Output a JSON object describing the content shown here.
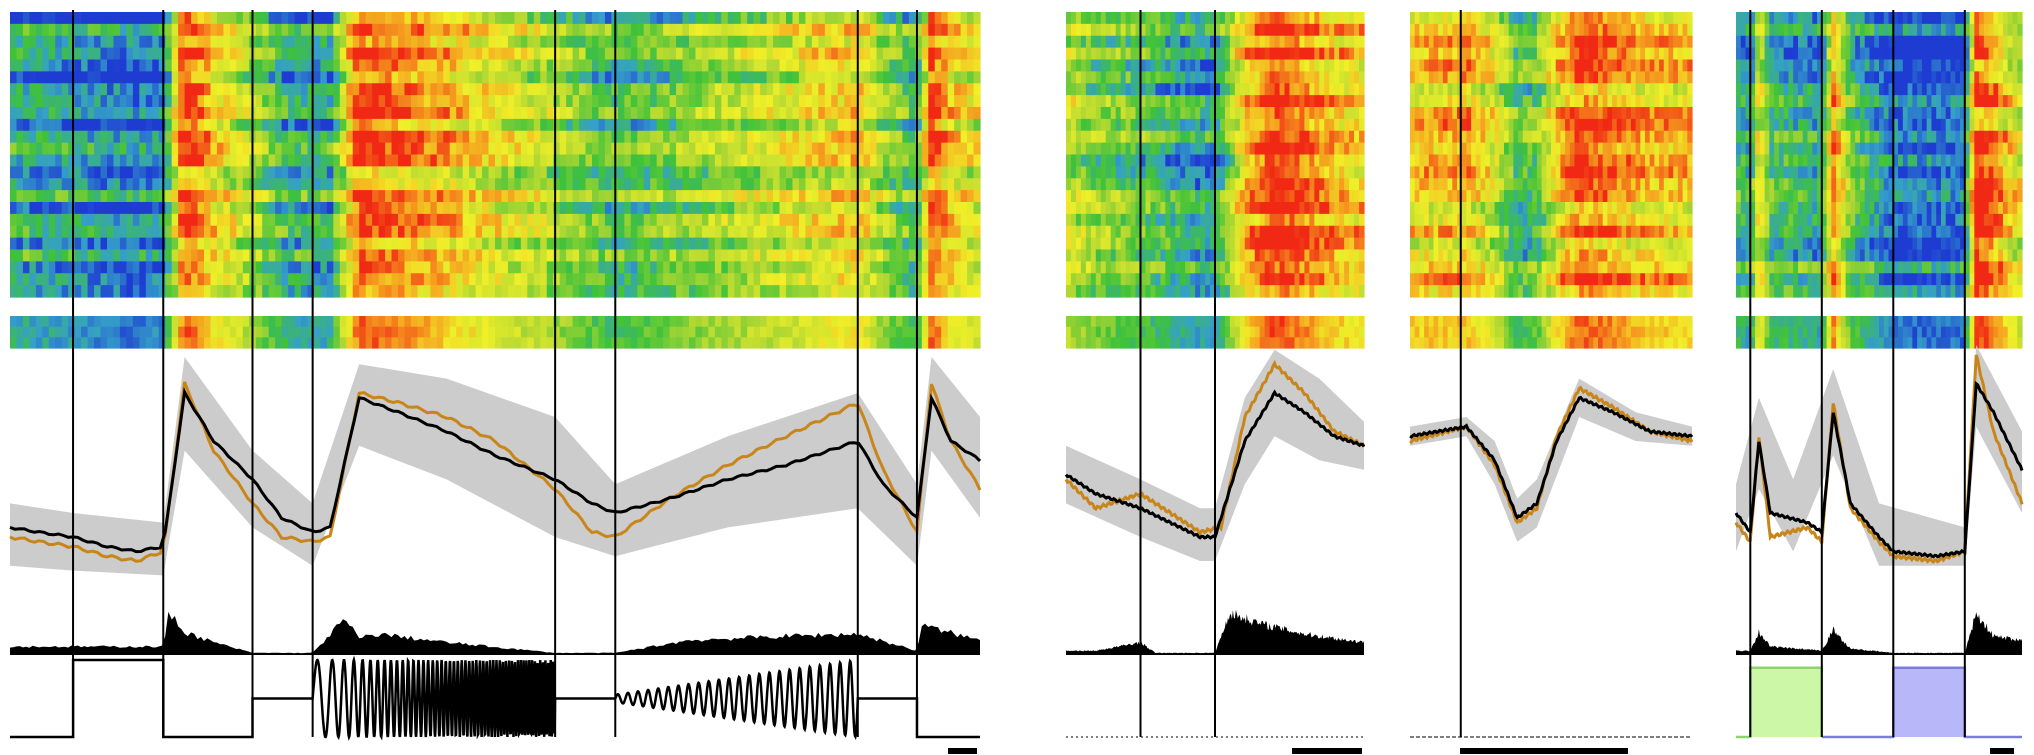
{
  "chart_data": {
    "type": "heatmap",
    "colormap": [
      "#1e3cd2",
      "#35a0c8",
      "#3fc23a",
      "#b4d832",
      "#f0f028",
      "#f59a1e",
      "#f02814"
    ],
    "colors": {
      "mean_trace": "#000000",
      "example_trace": "#c8861a",
      "sd_band": "#cccccc",
      "green_stim_fill": "#ccf7a6",
      "green_stim_line": "#8ed468",
      "blue_stim_fill": "#b7b7fa",
      "blue_stim_line": "#7c7ce0",
      "stim_trace": "#000000"
    },
    "panels": [
      {
        "name": "chirp",
        "event_markers_fraction": [
          0.065,
          0.158,
          0.25,
          0.312,
          0.562,
          0.624,
          0.874,
          0.935
        ],
        "scale_bar": true,
        "mean_response": [
          [
            0.0,
            0.24
          ],
          [
            0.03,
            0.22
          ],
          [
            0.065,
            0.2
          ],
          [
            0.1,
            0.16
          ],
          [
            0.13,
            0.14
          ],
          [
            0.158,
            0.16
          ],
          [
            0.18,
            0.8
          ],
          [
            0.21,
            0.6
          ],
          [
            0.25,
            0.44
          ],
          [
            0.28,
            0.28
          ],
          [
            0.312,
            0.22
          ],
          [
            0.33,
            0.24
          ],
          [
            0.36,
            0.78
          ],
          [
            0.4,
            0.72
          ],
          [
            0.45,
            0.64
          ],
          [
            0.5,
            0.54
          ],
          [
            0.562,
            0.44
          ],
          [
            0.6,
            0.34
          ],
          [
            0.624,
            0.3
          ],
          [
            0.68,
            0.36
          ],
          [
            0.74,
            0.44
          ],
          [
            0.8,
            0.5
          ],
          [
            0.874,
            0.6
          ],
          [
            0.9,
            0.42
          ],
          [
            0.935,
            0.28
          ],
          [
            0.95,
            0.78
          ],
          [
            0.97,
            0.6
          ],
          [
            1.0,
            0.52
          ]
        ],
        "example_response": [
          [
            0.0,
            0.2
          ],
          [
            0.03,
            0.18
          ],
          [
            0.065,
            0.16
          ],
          [
            0.1,
            0.12
          ],
          [
            0.13,
            0.1
          ],
          [
            0.158,
            0.14
          ],
          [
            0.18,
            0.84
          ],
          [
            0.21,
            0.56
          ],
          [
            0.25,
            0.34
          ],
          [
            0.28,
            0.2
          ],
          [
            0.312,
            0.18
          ],
          [
            0.33,
            0.2
          ],
          [
            0.36,
            0.8
          ],
          [
            0.4,
            0.76
          ],
          [
            0.45,
            0.7
          ],
          [
            0.5,
            0.6
          ],
          [
            0.562,
            0.4
          ],
          [
            0.6,
            0.22
          ],
          [
            0.624,
            0.2
          ],
          [
            0.68,
            0.36
          ],
          [
            0.74,
            0.5
          ],
          [
            0.8,
            0.62
          ],
          [
            0.874,
            0.76
          ],
          [
            0.9,
            0.48
          ],
          [
            0.935,
            0.22
          ],
          [
            0.95,
            0.84
          ],
          [
            0.97,
            0.6
          ],
          [
            1.0,
            0.4
          ]
        ],
        "sd_upper": [
          [
            0.0,
            0.34
          ],
          [
            0.065,
            0.3
          ],
          [
            0.158,
            0.26
          ],
          [
            0.18,
            0.95
          ],
          [
            0.25,
            0.56
          ],
          [
            0.312,
            0.34
          ],
          [
            0.36,
            0.92
          ],
          [
            0.45,
            0.86
          ],
          [
            0.562,
            0.7
          ],
          [
            0.624,
            0.42
          ],
          [
            0.74,
            0.62
          ],
          [
            0.874,
            0.8
          ],
          [
            0.935,
            0.42
          ],
          [
            0.95,
            0.95
          ],
          [
            1.0,
            0.7
          ]
        ],
        "sd_lower": [
          [
            0.0,
            0.08
          ],
          [
            0.065,
            0.06
          ],
          [
            0.158,
            0.04
          ],
          [
            0.18,
            0.56
          ],
          [
            0.25,
            0.24
          ],
          [
            0.312,
            0.08
          ],
          [
            0.36,
            0.58
          ],
          [
            0.45,
            0.44
          ],
          [
            0.562,
            0.2
          ],
          [
            0.624,
            0.12
          ],
          [
            0.74,
            0.24
          ],
          [
            0.874,
            0.32
          ],
          [
            0.935,
            0.08
          ],
          [
            0.95,
            0.56
          ],
          [
            1.0,
            0.28
          ]
        ],
        "firing_rate_peaks": [
          [
            0.158,
            0.2
          ],
          [
            0.164,
            1.0
          ],
          [
            0.18,
            0.55
          ],
          [
            0.21,
            0.3
          ],
          [
            0.25,
            0.05
          ],
          [
            0.312,
            0.05
          ],
          [
            0.345,
            0.85
          ],
          [
            0.36,
            0.4
          ],
          [
            0.38,
            0.5
          ],
          [
            0.45,
            0.3
          ],
          [
            0.562,
            0.05
          ],
          [
            0.624,
            0.05
          ],
          [
            0.7,
            0.35
          ],
          [
            0.8,
            0.45
          ],
          [
            0.874,
            0.5
          ],
          [
            0.935,
            0.1
          ],
          [
            0.94,
            0.7
          ],
          [
            1.0,
            0.35
          ]
        ],
        "stimulus": {
          "kind": "chirp",
          "segments": [
            {
              "from": 0.0,
              "to": 0.065,
              "level": 0.0
            },
            {
              "from": 0.065,
              "to": 0.158,
              "level": 1.0
            },
            {
              "from": 0.158,
              "to": 0.25,
              "level": 0.0
            },
            {
              "from": 0.25,
              "to": 0.312,
              "level": 0.5
            },
            {
              "from": 0.312,
              "to": 0.562,
              "level": 0.5,
              "modulation": "frequency",
              "f_start": 1,
              "f_end": 8,
              "amplitude": 0.5
            },
            {
              "from": 0.562,
              "to": 0.624,
              "level": 0.5
            },
            {
              "from": 0.624,
              "to": 0.874,
              "level": 0.5,
              "modulation": "amplitude",
              "frequency": 2,
              "a_start": 0.05,
              "a_end": 0.5
            },
            {
              "from": 0.874,
              "to": 0.935,
              "level": 0.5
            },
            {
              "from": 0.935,
              "to": 1.0,
              "level": 0.0
            }
          ]
        }
      },
      {
        "name": "moving-bar",
        "event_markers_fraction": [
          0.25,
          0.5
        ],
        "scale_bar": true,
        "mean_response": [
          [
            0.0,
            0.46
          ],
          [
            0.1,
            0.38
          ],
          [
            0.25,
            0.32
          ],
          [
            0.35,
            0.26
          ],
          [
            0.45,
            0.2
          ],
          [
            0.5,
            0.2
          ],
          [
            0.6,
            0.6
          ],
          [
            0.7,
            0.8
          ],
          [
            0.8,
            0.72
          ],
          [
            0.9,
            0.62
          ],
          [
            1.0,
            0.58
          ]
        ],
        "example_response": [
          [
            0.0,
            0.44
          ],
          [
            0.1,
            0.32
          ],
          [
            0.25,
            0.38
          ],
          [
            0.35,
            0.3
          ],
          [
            0.45,
            0.22
          ],
          [
            0.52,
            0.24
          ],
          [
            0.6,
            0.7
          ],
          [
            0.7,
            0.92
          ],
          [
            0.8,
            0.8
          ],
          [
            0.9,
            0.64
          ],
          [
            1.0,
            0.58
          ]
        ],
        "sd_upper": [
          [
            0.0,
            0.58
          ],
          [
            0.25,
            0.44
          ],
          [
            0.45,
            0.32
          ],
          [
            0.5,
            0.32
          ],
          [
            0.6,
            0.78
          ],
          [
            0.7,
            0.98
          ],
          [
            0.85,
            0.86
          ],
          [
            1.0,
            0.68
          ]
        ],
        "sd_lower": [
          [
            0.0,
            0.34
          ],
          [
            0.25,
            0.2
          ],
          [
            0.45,
            0.1
          ],
          [
            0.5,
            0.1
          ],
          [
            0.6,
            0.42
          ],
          [
            0.7,
            0.62
          ],
          [
            0.85,
            0.52
          ],
          [
            1.0,
            0.48
          ]
        ],
        "firing_rate_peaks": [
          [
            0.1,
            0.1
          ],
          [
            0.25,
            0.3
          ],
          [
            0.3,
            0.05
          ],
          [
            0.5,
            0.05
          ],
          [
            0.55,
            1.0
          ],
          [
            0.65,
            0.75
          ],
          [
            0.8,
            0.5
          ],
          [
            1.0,
            0.3
          ]
        ],
        "stimulus": {
          "kind": "dotted-baseline"
        }
      },
      {
        "name": "noise-kernel",
        "event_markers_fraction": [
          0.18
        ],
        "scale_bar": true,
        "mean_response": [
          [
            0.0,
            0.62
          ],
          [
            0.1,
            0.64
          ],
          [
            0.2,
            0.66
          ],
          [
            0.3,
            0.52
          ],
          [
            0.38,
            0.28
          ],
          [
            0.45,
            0.34
          ],
          [
            0.52,
            0.6
          ],
          [
            0.6,
            0.78
          ],
          [
            0.72,
            0.72
          ],
          [
            0.85,
            0.64
          ],
          [
            1.0,
            0.62
          ]
        ],
        "example_response": [
          [
            0.0,
            0.6
          ],
          [
            0.1,
            0.63
          ],
          [
            0.2,
            0.66
          ],
          [
            0.3,
            0.5
          ],
          [
            0.38,
            0.26
          ],
          [
            0.45,
            0.32
          ],
          [
            0.52,
            0.62
          ],
          [
            0.6,
            0.82
          ],
          [
            0.72,
            0.74
          ],
          [
            0.85,
            0.64
          ],
          [
            1.0,
            0.6
          ]
        ],
        "sd_upper": [
          [
            0.0,
            0.66
          ],
          [
            0.2,
            0.7
          ],
          [
            0.3,
            0.6
          ],
          [
            0.38,
            0.36
          ],
          [
            0.45,
            0.44
          ],
          [
            0.6,
            0.86
          ],
          [
            0.8,
            0.72
          ],
          [
            1.0,
            0.66
          ]
        ],
        "sd_lower": [
          [
            0.0,
            0.58
          ],
          [
            0.2,
            0.62
          ],
          [
            0.3,
            0.42
          ],
          [
            0.38,
            0.18
          ],
          [
            0.45,
            0.24
          ],
          [
            0.6,
            0.7
          ],
          [
            0.8,
            0.6
          ],
          [
            1.0,
            0.58
          ]
        ],
        "firing_rate_peaks": [],
        "stimulus": {
          "kind": "dashed-baseline"
        }
      },
      {
        "name": "color-flashes",
        "event_markers_fraction": [
          0.05,
          0.3,
          0.55,
          0.8
        ],
        "scale_bar": true,
        "mean_response": [
          [
            0.0,
            0.3
          ],
          [
            0.05,
            0.22
          ],
          [
            0.08,
            0.6
          ],
          [
            0.12,
            0.3
          ],
          [
            0.25,
            0.26
          ],
          [
            0.3,
            0.22
          ],
          [
            0.34,
            0.72
          ],
          [
            0.4,
            0.34
          ],
          [
            0.5,
            0.2
          ],
          [
            0.55,
            0.14
          ],
          [
            0.7,
            0.12
          ],
          [
            0.8,
            0.14
          ],
          [
            0.84,
            0.84
          ],
          [
            0.9,
            0.72
          ],
          [
            1.0,
            0.48
          ]
        ],
        "example_response": [
          [
            0.0,
            0.26
          ],
          [
            0.05,
            0.18
          ],
          [
            0.08,
            0.62
          ],
          [
            0.12,
            0.2
          ],
          [
            0.25,
            0.24
          ],
          [
            0.3,
            0.18
          ],
          [
            0.34,
            0.76
          ],
          [
            0.4,
            0.32
          ],
          [
            0.5,
            0.18
          ],
          [
            0.55,
            0.12
          ],
          [
            0.7,
            0.1
          ],
          [
            0.8,
            0.14
          ],
          [
            0.84,
            0.96
          ],
          [
            0.9,
            0.64
          ],
          [
            1.0,
            0.34
          ]
        ],
        "sd_upper": [
          [
            0.0,
            0.42
          ],
          [
            0.08,
            0.78
          ],
          [
            0.2,
            0.44
          ],
          [
            0.34,
            0.9
          ],
          [
            0.5,
            0.34
          ],
          [
            0.8,
            0.24
          ],
          [
            0.84,
            1.0
          ],
          [
            1.0,
            0.64
          ]
        ],
        "sd_lower": [
          [
            0.0,
            0.14
          ],
          [
            0.08,
            0.4
          ],
          [
            0.2,
            0.14
          ],
          [
            0.34,
            0.54
          ],
          [
            0.5,
            0.08
          ],
          [
            0.8,
            0.08
          ],
          [
            0.84,
            0.66
          ],
          [
            1.0,
            0.3
          ]
        ],
        "firing_rate_peaks": [
          [
            0.05,
            0.1
          ],
          [
            0.08,
            0.55
          ],
          [
            0.12,
            0.2
          ],
          [
            0.3,
            0.1
          ],
          [
            0.34,
            0.6
          ],
          [
            0.4,
            0.15
          ],
          [
            0.55,
            0.05
          ],
          [
            0.8,
            0.05
          ],
          [
            0.84,
            1.0
          ],
          [
            0.9,
            0.45
          ],
          [
            1.0,
            0.35
          ]
        ],
        "stimulus": {
          "kind": "color-steps",
          "steps": [
            {
              "from": 0.05,
              "to": 0.3,
              "level": 0.9,
              "color": "green"
            },
            {
              "from": 0.55,
              "to": 0.8,
              "level": 0.9,
              "color": "blue"
            }
          ]
        }
      }
    ]
  }
}
